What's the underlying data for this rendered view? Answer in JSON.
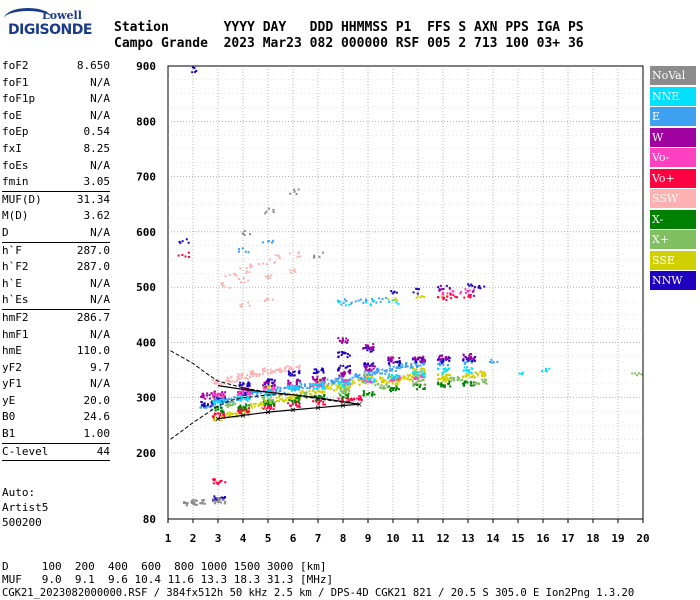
{
  "logo": {
    "line1": "Lowell",
    "line2": "DIGISONDE"
  },
  "header": {
    "labels": "Station       YYYY DAY   DDD HHMMSS P1  FFS S AXN PPS IGA PS",
    "values": "Campo Grande  2023 Mar23 082 000000 RSF 005 2 713 100 03+ 36"
  },
  "params": [
    {
      "k": "foF2",
      "v": "8.650"
    },
    {
      "k": "foF1",
      "v": "N/A"
    },
    {
      "k": "foF1p",
      "v": "N/A"
    },
    {
      "k": "foE",
      "v": "N/A"
    },
    {
      "k": "foEp",
      "v": "0.54"
    },
    {
      "k": "fxI",
      "v": "8.25"
    },
    {
      "k": "foEs",
      "v": "N/A"
    },
    {
      "k": "fmin",
      "v": "3.05"
    },
    {
      "sep": true
    },
    {
      "k": "MUF(D)",
      "v": "31.34"
    },
    {
      "k": "M(D)",
      "v": "3.62"
    },
    {
      "k": "D",
      "v": "N/A"
    },
    {
      "sep": true
    },
    {
      "k": "h`F",
      "v": "287.0"
    },
    {
      "k": "h`F2",
      "v": "287.0"
    },
    {
      "k": "h`E",
      "v": "N/A"
    },
    {
      "k": "h`Es",
      "v": "N/A"
    },
    {
      "sep": true
    },
    {
      "k": "hmF2",
      "v": "286.7"
    },
    {
      "k": "hmF1",
      "v": "N/A"
    },
    {
      "k": "hmE",
      "v": "110.0"
    },
    {
      "k": "yF2",
      "v": "9.7"
    },
    {
      "k": "yF1",
      "v": "N/A"
    },
    {
      "k": "yE",
      "v": "20.0"
    },
    {
      "k": "B0",
      "v": "24.6"
    },
    {
      "k": "B1",
      "v": "1.00"
    },
    {
      "sep": true
    },
    {
      "k": "C-level",
      "v": "44"
    },
    {
      "sep": true
    }
  ],
  "auto": {
    "line1": "Auto:",
    "line2": "Artist5",
    "line3": "500200"
  },
  "legend": [
    {
      "label": "NoVal",
      "color": "#8c8c8c"
    },
    {
      "label": "NNE",
      "color": "#00e0ff"
    },
    {
      "label": "E",
      "color": "#3da0f0"
    },
    {
      "label": "W",
      "color": "#a000a0"
    },
    {
      "label": "Vo-",
      "color": "#ff40c0"
    },
    {
      "label": "Vo+",
      "color": "#ff0040"
    },
    {
      "label": "SSW",
      "color": "#ffb0b0"
    },
    {
      "label": "X-",
      "color": "#008000"
    },
    {
      "label": "X+",
      "color": "#80c060"
    },
    {
      "label": "SSE",
      "color": "#d0d000"
    },
    {
      "label": "NNW",
      "color": "#2000c0"
    }
  ],
  "bottom": {
    "line1": "D     100  200  400  600  800 1000 1500 3000 [km]",
    "line2": "MUF   9.0  9.1  9.6 10.4 11.6 13.3 18.3 31.3 [MHz]"
  },
  "filename": "CGK21_2023082000000.RSF / 384fx512h 50 kHz 2.5 km / DPS-4D CGK21 821 / 20.5 S 305.0 E Ion2Png 1.3.20",
  "chart_data": {
    "type": "scatter",
    "title": "",
    "xlabel": "",
    "ylabel": "",
    "xlim": [
      1,
      20
    ],
    "ylim": [
      80,
      900
    ],
    "x_ticks": [
      1,
      2,
      3,
      4,
      5,
      6,
      7,
      8,
      9,
      10,
      11,
      12,
      13,
      14,
      15,
      16,
      17,
      18,
      19,
      20
    ],
    "y_ticks": [
      80,
      200,
      300,
      400,
      500,
      600,
      700,
      800,
      900
    ],
    "grid": true,
    "legend_placement": "right",
    "series": [
      {
        "name": "SSE",
        "color": "#d0d000",
        "points": [
          [
            3,
            265
          ],
          [
            3.5,
            272
          ],
          [
            4,
            280
          ],
          [
            4.5,
            288
          ],
          [
            5,
            295
          ],
          [
            5.5,
            300
          ],
          [
            6,
            305
          ],
          [
            6.5,
            310
          ],
          [
            7,
            315
          ],
          [
            7.5,
            320
          ],
          [
            8,
            325
          ],
          [
            8.5,
            330
          ],
          [
            9,
            332
          ],
          [
            9.5,
            334
          ],
          [
            10,
            336
          ],
          [
            10.5,
            338
          ],
          [
            11,
            340
          ],
          [
            12,
            340
          ],
          [
            13,
            342
          ],
          [
            10,
            480
          ],
          [
            11,
            482
          ],
          [
            12,
            486
          ],
          [
            3,
            300
          ],
          [
            5,
            320
          ],
          [
            7,
            330
          ],
          [
            9,
            340
          ],
          [
            11,
            350
          ],
          [
            4,
            275
          ],
          [
            6,
            300
          ],
          [
            8,
            320
          ],
          [
            10,
            330
          ],
          [
            12,
            335
          ],
          [
            13.5,
            345
          ]
        ]
      },
      {
        "name": "E",
        "color": "#3da0f0",
        "points": [
          [
            2.5,
            285
          ],
          [
            3,
            292
          ],
          [
            3.5,
            298
          ],
          [
            4,
            303
          ],
          [
            4.5,
            308
          ],
          [
            5,
            312
          ],
          [
            5.5,
            316
          ],
          [
            6,
            320
          ],
          [
            6.5,
            324
          ],
          [
            7,
            328
          ],
          [
            7.5,
            332
          ],
          [
            8,
            335
          ],
          [
            8.5,
            340
          ],
          [
            9,
            345
          ],
          [
            9.5,
            350
          ],
          [
            10,
            355
          ],
          [
            10.5,
            360
          ],
          [
            11,
            362
          ],
          [
            12,
            365
          ],
          [
            13,
            368
          ],
          [
            14,
            370
          ],
          [
            8,
            475
          ],
          [
            8.5,
            476
          ],
          [
            9,
            477
          ],
          [
            9.5,
            478
          ],
          [
            4,
            570
          ],
          [
            5,
            585
          ]
        ]
      },
      {
        "name": "SSW",
        "color": "#ffb0b0",
        "points": [
          [
            3,
            330
          ],
          [
            3.5,
            335
          ],
          [
            4,
            340
          ],
          [
            4.5,
            345
          ],
          [
            5,
            350
          ],
          [
            5.5,
            352
          ],
          [
            6,
            355
          ],
          [
            3.5,
            525
          ],
          [
            4,
            532
          ],
          [
            4.5,
            540
          ],
          [
            5,
            548
          ],
          [
            5.5,
            555
          ],
          [
            6,
            560
          ],
          [
            3.2,
            505
          ],
          [
            4,
            515
          ],
          [
            5,
            522
          ],
          [
            6,
            530
          ],
          [
            4,
            470
          ],
          [
            5,
            480
          ]
        ]
      },
      {
        "name": "NNW",
        "color": "#2000c0",
        "points": [
          [
            2.1,
            895
          ],
          [
            2.5,
            290
          ],
          [
            3,
            300
          ],
          [
            4,
            310
          ],
          [
            5,
            330
          ],
          [
            6,
            345
          ],
          [
            7,
            350
          ],
          [
            8,
            355
          ],
          [
            9,
            360
          ],
          [
            10,
            365
          ],
          [
            11,
            370
          ],
          [
            12,
            370
          ],
          [
            13,
            372
          ],
          [
            10,
            490
          ],
          [
            11,
            495
          ],
          [
            12,
            500
          ],
          [
            13,
            505
          ],
          [
            13.5,
            500
          ],
          [
            1.6,
            585
          ],
          [
            3,
            120
          ],
          [
            4,
            325
          ],
          [
            8,
            380
          ],
          [
            9,
            390
          ]
        ]
      },
      {
        "name": "W",
        "color": "#a000a0",
        "points": [
          [
            2.5,
            305
          ],
          [
            3,
            308
          ],
          [
            4,
            315
          ],
          [
            5,
            325
          ],
          [
            6,
            330
          ],
          [
            7,
            335
          ],
          [
            8,
            345
          ],
          [
            9,
            355
          ],
          [
            10,
            370
          ],
          [
            11,
            372
          ],
          [
            12,
            375
          ],
          [
            13,
            376
          ],
          [
            8,
            405
          ],
          [
            9,
            395
          ],
          [
            12,
            500
          ],
          [
            13,
            490
          ]
        ]
      },
      {
        "name": "Vo-",
        "color": "#ff40c0",
        "points": [
          [
            3,
            305
          ],
          [
            4,
            310
          ],
          [
            5,
            315
          ],
          [
            6,
            320
          ],
          [
            7,
            325
          ],
          [
            8,
            330
          ],
          [
            9,
            335
          ],
          [
            10,
            338
          ],
          [
            11,
            340
          ],
          [
            12,
            488
          ],
          [
            12.5,
            492
          ],
          [
            13,
            495
          ]
        ]
      },
      {
        "name": "Vo+",
        "color": "#ff0040",
        "points": [
          [
            3,
            270
          ],
          [
            4,
            278
          ],
          [
            5,
            285
          ],
          [
            6,
            290
          ],
          [
            7,
            293
          ],
          [
            8,
            296
          ],
          [
            8.5,
            300
          ],
          [
            12,
            480
          ],
          [
            12.5,
            485
          ],
          [
            13,
            488
          ],
          [
            1.6,
            560
          ],
          [
            3,
            150
          ]
        ]
      },
      {
        "name": "NNE",
        "color": "#00e0ff",
        "points": [
          [
            3,
            295
          ],
          [
            4,
            300
          ],
          [
            5,
            310
          ],
          [
            6,
            318
          ],
          [
            7,
            322
          ],
          [
            8,
            327
          ],
          [
            9,
            333
          ],
          [
            10,
            340
          ],
          [
            11,
            345
          ],
          [
            12,
            350
          ],
          [
            13,
            352
          ],
          [
            16,
            350
          ],
          [
            15,
            345
          ],
          [
            8,
            472
          ],
          [
            9,
            474
          ],
          [
            10,
            475
          ]
        ]
      },
      {
        "name": "X-",
        "color": "#008000",
        "points": [
          [
            3,
            280
          ],
          [
            4,
            285
          ],
          [
            5,
            292
          ],
          [
            6,
            298
          ],
          [
            7,
            302
          ],
          [
            8,
            306
          ],
          [
            9,
            310
          ],
          [
            10,
            318
          ],
          [
            11,
            322
          ],
          [
            12,
            326
          ],
          [
            13,
            328
          ]
        ]
      },
      {
        "name": "X+",
        "color": "#80c060",
        "points": [
          [
            3.5,
            290
          ],
          [
            5,
            298
          ],
          [
            6.5,
            306
          ],
          [
            8,
            314
          ],
          [
            9.5,
            322
          ],
          [
            11,
            330
          ],
          [
            12.5,
            335
          ],
          [
            13.5,
            330
          ],
          [
            19.7,
            345
          ]
        ]
      },
      {
        "name": "NoVal",
        "color": "#8c8c8c",
        "points": [
          [
            4,
            600
          ],
          [
            6,
            675
          ],
          [
            5,
            640
          ],
          [
            7,
            560
          ],
          [
            3,
            115
          ],
          [
            1.8,
            110
          ],
          [
            2.2,
            112
          ]
        ]
      }
    ],
    "curves": {
      "x_trace": [
        [
          1.1,
          385
        ],
        [
          2,
          362
        ],
        [
          2.5,
          345
        ],
        [
          3,
          330
        ],
        [
          4,
          318
        ],
        [
          5,
          310
        ],
        [
          6,
          305
        ],
        [
          7,
          298
        ],
        [
          8,
          292
        ],
        [
          8.65,
          288
        ]
      ],
      "o_trace": [
        [
          3,
          262
        ],
        [
          4,
          268
        ],
        [
          5,
          274
        ],
        [
          6,
          278
        ],
        [
          7,
          282
        ],
        [
          8,
          286
        ],
        [
          8.65,
          288
        ]
      ],
      "profile": [
        [
          1.1,
          225
        ],
        [
          1.5,
          238
        ],
        [
          2,
          255
        ],
        [
          2.5,
          270
        ],
        [
          3,
          285
        ],
        [
          3.5,
          295
        ],
        [
          4,
          300
        ],
        [
          5,
          305
        ],
        [
          6,
          305
        ],
        [
          7,
          300
        ],
        [
          8.65,
          288
        ]
      ],
      "upper": [
        [
          3,
          322
        ],
        [
          4,
          315
        ],
        [
          5,
          310
        ],
        [
          6,
          305
        ],
        [
          7,
          300
        ],
        [
          8.65,
          288
        ]
      ]
    }
  }
}
